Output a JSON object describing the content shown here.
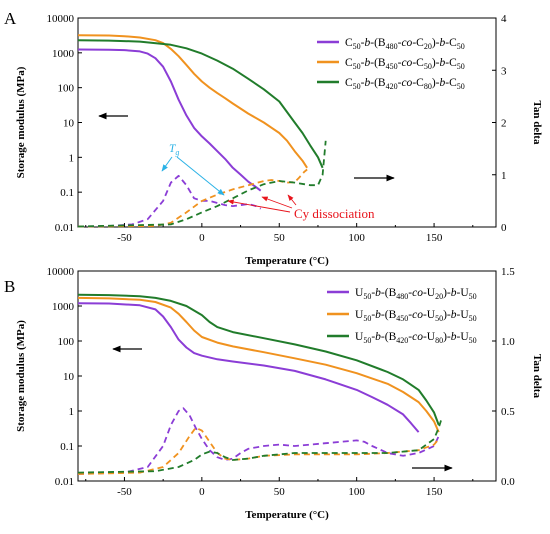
{
  "chart_data": [
    {
      "type": "line",
      "panel_label": "A",
      "xlabel": "Temperature (°C)",
      "ylabel_left": "Storage modulus (MPa)",
      "ylabel_right": "Tan delta",
      "xlim": [
        -80,
        190
      ],
      "ylim_left": [
        0.01,
        10000
      ],
      "ylim_right": [
        0,
        4
      ],
      "left_log_scale": true,
      "x_ticks": [
        "-50",
        "0",
        "50",
        "100",
        "150"
      ],
      "y_left_ticks": [
        "0.01",
        "0.1",
        "1",
        "10",
        "100",
        "1000",
        "10000"
      ],
      "y_right_ticks": [
        "0",
        "1",
        "2",
        "3",
        "4"
      ],
      "legend_position": "top-right",
      "series": [
        {
          "name_parts": [
            [
              "C",
              ""
            ],
            [
              "50",
              "sub"
            ],
            [
              "-",
              ""
            ],
            [
              "b",
              "i"
            ],
            [
              "-(B",
              ""
            ],
            [
              "480",
              "sub"
            ],
            [
              "-",
              ""
            ],
            [
              "co",
              "i"
            ],
            [
              "-C",
              ""
            ],
            [
              "20",
              "sub"
            ],
            [
              ")-",
              ""
            ],
            [
              "b",
              "i"
            ],
            [
              "-C",
              ""
            ],
            [
              "50",
              "sub"
            ]
          ],
          "color": "#8b3dd6",
          "modulus": {
            "x": [
              -80,
              -70,
              -60,
              -50,
              -40,
              -35,
              -30,
              -25,
              -20,
              -15,
              -10,
              -5,
              0,
              5,
              10,
              15,
              20,
              25,
              30,
              35,
              38
            ],
            "y": [
              1250,
              1240,
              1220,
              1200,
              1100,
              950,
              700,
              400,
              150,
              45,
              16,
              7,
              4,
              2.5,
              1.5,
              0.9,
              0.5,
              0.32,
              0.2,
              0.14,
              0.11
            ]
          },
          "tan_delta": {
            "x": [
              -80,
              -60,
              -45,
              -35,
              -25,
              -20,
              -15,
              -10,
              -5,
              0,
              5,
              10,
              15,
              20,
              25,
              30,
              35,
              38
            ],
            "y": [
              0.01,
              0.02,
              0.05,
              0.15,
              0.5,
              0.85,
              0.98,
              0.8,
              0.55,
              0.5,
              0.5,
              0.46,
              0.42,
              0.4,
              0.42,
              0.44,
              0.4,
              0.35
            ]
          }
        },
        {
          "name_parts": [
            [
              "C",
              ""
            ],
            [
              "50",
              "sub"
            ],
            [
              "-",
              ""
            ],
            [
              "b",
              "i"
            ],
            [
              "-(B",
              ""
            ],
            [
              "450",
              "sub"
            ],
            [
              "-",
              ""
            ],
            [
              "co",
              "i"
            ],
            [
              "-C",
              ""
            ],
            [
              "50",
              "sub"
            ],
            [
              ")-",
              ""
            ],
            [
              "b",
              "i"
            ],
            [
              "-C",
              ""
            ],
            [
              "50",
              "sub"
            ]
          ],
          "color": "#f0921f",
          "modulus": {
            "x": [
              -80,
              -60,
              -50,
              -40,
              -30,
              -25,
              -20,
              -15,
              -10,
              -5,
              0,
              5,
              10,
              15,
              20,
              30,
              40,
              50,
              55,
              60,
              65,
              68
            ],
            "y": [
              3200,
              3150,
              3000,
              2750,
              2300,
              1900,
              1300,
              800,
              450,
              250,
              150,
              100,
              70,
              50,
              35,
              18,
              10,
              5,
              3,
              1.5,
              0.8,
              0.5
            ]
          },
          "tan_delta": {
            "x": [
              -80,
              -30,
              -20,
              -10,
              0,
              10,
              20,
              30,
              40,
              45,
              50,
              55,
              60,
              63,
              66,
              68
            ],
            "y": [
              0.01,
              0.02,
              0.08,
              0.28,
              0.5,
              0.62,
              0.72,
              0.8,
              0.88,
              0.9,
              0.88,
              0.85,
              0.86,
              0.95,
              1.05,
              1.1
            ]
          }
        },
        {
          "name_parts": [
            [
              "C",
              ""
            ],
            [
              "50",
              "sub"
            ],
            [
              "-",
              ""
            ],
            [
              "b",
              "i"
            ],
            [
              "-(B",
              ""
            ],
            [
              "420",
              "sub"
            ],
            [
              "-",
              ""
            ],
            [
              "co",
              "i"
            ],
            [
              "-C",
              ""
            ],
            [
              "80",
              "sub"
            ],
            [
              ")-",
              ""
            ],
            [
              "b",
              "i"
            ],
            [
              "-C",
              ""
            ],
            [
              "50",
              "sub"
            ]
          ],
          "color": "#217c2b",
          "modulus": {
            "x": [
              -80,
              -60,
              -40,
              -20,
              -10,
              0,
              10,
              20,
              30,
              40,
              50,
              55,
              60,
              65,
              70,
              75,
              78
            ],
            "y": [
              2300,
              2250,
              2100,
              1700,
              1350,
              950,
              600,
              350,
              180,
              90,
              40,
              20,
              10,
              5,
              2.2,
              1.0,
              0.5
            ]
          },
          "tan_delta": {
            "x": [
              -80,
              -20,
              -10,
              0,
              10,
              20,
              30,
              40,
              50,
              60,
              70,
              75,
              78,
              80
            ],
            "y": [
              0.01,
              0.05,
              0.15,
              0.28,
              0.4,
              0.55,
              0.7,
              0.82,
              0.88,
              0.85,
              0.8,
              0.8,
              1.0,
              1.65
            ]
          }
        }
      ],
      "annotations": {
        "tg_label": "T",
        "tg_sub": "g",
        "dissociation_label": "Cy dissociation"
      }
    },
    {
      "type": "line",
      "panel_label": "B",
      "xlabel": "Temperature (°C)",
      "ylabel_left": "Storage modulus (MPa)",
      "ylabel_right": "Tan delta",
      "xlim": [
        -80,
        190
      ],
      "ylim_left": [
        0.01,
        10000
      ],
      "ylim_right": [
        0,
        1.5
      ],
      "left_log_scale": true,
      "x_ticks": [
        "-50",
        "0",
        "50",
        "100",
        "150"
      ],
      "y_left_ticks": [
        "0.01",
        "0.1",
        "1",
        "10",
        "100",
        "1000",
        "10000"
      ],
      "y_right_ticks": [
        "0.0",
        "0.5",
        "1.0",
        "1.5"
      ],
      "legend_position": "top-right",
      "series": [
        {
          "name_parts": [
            [
              "U",
              ""
            ],
            [
              "50",
              "sub"
            ],
            [
              "-",
              ""
            ],
            [
              "b",
              "i"
            ],
            [
              "-(B",
              ""
            ],
            [
              "480",
              "sub"
            ],
            [
              "-",
              ""
            ],
            [
              "co",
              "i"
            ],
            [
              "-U",
              ""
            ],
            [
              "20",
              "sub"
            ],
            [
              ")-",
              ""
            ],
            [
              "b",
              "i"
            ],
            [
              "-U",
              ""
            ],
            [
              "50",
              "sub"
            ]
          ],
          "color": "#8b3dd6",
          "modulus": {
            "x": [
              -80,
              -60,
              -40,
              -30,
              -25,
              -20,
              -15,
              -10,
              -5,
              0,
              10,
              20,
              40,
              60,
              80,
              100,
              110,
              120,
              130,
              135,
              140
            ],
            "y": [
              1200,
              1180,
              1050,
              800,
              500,
              250,
              110,
              65,
              45,
              38,
              30,
              26,
              20,
              14,
              8,
              4,
              2.5,
              1.5,
              0.8,
              0.45,
              0.25
            ]
          },
          "tan_delta": {
            "x": [
              -80,
              -50,
              -35,
              -25,
              -20,
              -15,
              -12,
              -8,
              -4,
              0,
              5,
              10,
              15,
              20,
              25,
              30,
              40,
              50,
              60,
              70,
              80,
              90,
              100,
              105,
              110,
              120,
              130,
              140,
              150,
              153
            ],
            "y": [
              0.05,
              0.06,
              0.1,
              0.25,
              0.4,
              0.5,
              0.52,
              0.47,
              0.38,
              0.3,
              0.22,
              0.17,
              0.15,
              0.16,
              0.2,
              0.23,
              0.25,
              0.26,
              0.25,
              0.26,
              0.27,
              0.28,
              0.29,
              0.28,
              0.25,
              0.2,
              0.18,
              0.2,
              0.25,
              0.32
            ]
          }
        },
        {
          "name_parts": [
            [
              "U",
              ""
            ],
            [
              "50",
              "sub"
            ],
            [
              "-",
              ""
            ],
            [
              "b",
              "i"
            ],
            [
              "-(B",
              ""
            ],
            [
              "450",
              "sub"
            ],
            [
              "-",
              ""
            ],
            [
              "co",
              "i"
            ],
            [
              "-U",
              ""
            ],
            [
              "50",
              "sub"
            ],
            [
              ")-",
              ""
            ],
            [
              "b",
              "i"
            ],
            [
              "-U",
              ""
            ],
            [
              "50",
              "sub"
            ]
          ],
          "color": "#f0921f",
          "modulus": {
            "x": [
              -80,
              -60,
              -40,
              -30,
              -20,
              -15,
              -10,
              -5,
              0,
              10,
              20,
              40,
              60,
              80,
              100,
              120,
              130,
              140,
              145,
              150,
              153
            ],
            "y": [
              1700,
              1650,
              1500,
              1300,
              900,
              600,
              350,
              200,
              130,
              90,
              70,
              48,
              32,
              21,
              12,
              6,
              3.5,
              1.8,
              1.0,
              0.5,
              0.25
            ]
          },
          "tan_delta": {
            "x": [
              -80,
              -40,
              -25,
              -15,
              -8,
              -4,
              0,
              5,
              10,
              15,
              20,
              30,
              40,
              60,
              80,
              100,
              120,
              140,
              150,
              153
            ],
            "y": [
              0.05,
              0.06,
              0.1,
              0.2,
              0.32,
              0.38,
              0.36,
              0.28,
              0.2,
              0.16,
              0.15,
              0.16,
              0.18,
              0.19,
              0.19,
              0.19,
              0.2,
              0.22,
              0.26,
              0.3
            ]
          }
        },
        {
          "name_parts": [
            [
              "U",
              ""
            ],
            [
              "50",
              "sub"
            ],
            [
              "-",
              ""
            ],
            [
              "b",
              "i"
            ],
            [
              "-(B",
              ""
            ],
            [
              "420",
              "sub"
            ],
            [
              "-",
              ""
            ],
            [
              "co",
              "i"
            ],
            [
              "-U",
              ""
            ],
            [
              "80",
              "sub"
            ],
            [
              ")-",
              ""
            ],
            [
              "b",
              "i"
            ],
            [
              "-U",
              ""
            ],
            [
              "50",
              "sub"
            ]
          ],
          "color": "#217c2b",
          "modulus": {
            "x": [
              -80,
              -60,
              -40,
              -30,
              -20,
              -10,
              0,
              5,
              10,
              20,
              40,
              60,
              80,
              100,
              120,
              130,
              140,
              145,
              150,
              153
            ],
            "y": [
              2100,
              2050,
              1900,
              1700,
              1400,
              1000,
              550,
              350,
              250,
              180,
              120,
              80,
              50,
              28,
              13,
              8,
              4,
              2,
              0.9,
              0.4
            ]
          },
          "tan_delta": {
            "x": [
              -80,
              -30,
              -15,
              -5,
              0,
              5,
              10,
              15,
              20,
              30,
              40,
              60,
              80,
              100,
              120,
              140,
              150,
              153,
              155
            ],
            "y": [
              0.06,
              0.07,
              0.1,
              0.15,
              0.19,
              0.21,
              0.2,
              0.17,
              0.15,
              0.16,
              0.18,
              0.2,
              0.2,
              0.2,
              0.2,
              0.22,
              0.3,
              0.38,
              0.45
            ]
          }
        }
      ],
      "annotations": {}
    }
  ]
}
